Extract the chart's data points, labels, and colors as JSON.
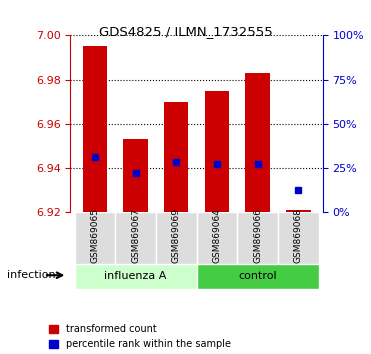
{
  "title": "GDS4825 / ILMN_1732555",
  "samples": [
    "GSM869065",
    "GSM869067",
    "GSM869069",
    "GSM869064",
    "GSM869066",
    "GSM869068"
  ],
  "bar_bottom": 6.92,
  "bar_tops": [
    6.995,
    6.953,
    6.97,
    6.975,
    6.983,
    6.921
  ],
  "blue_values": [
    6.945,
    6.938,
    6.943,
    6.942,
    6.942,
    6.93
  ],
  "ylim_left": [
    6.92,
    7.0
  ],
  "yticks_left": [
    6.92,
    6.94,
    6.96,
    6.98,
    7.0
  ],
  "ylim_right": [
    0,
    100
  ],
  "yticks_right": [
    0,
    25,
    50,
    75,
    100
  ],
  "bar_color": "#cc0000",
  "blue_color": "#0000cc",
  "bar_width": 0.6,
  "left_axis_color": "#cc0000",
  "right_axis_color": "#0000cc",
  "infection_label": "infection",
  "legend_red_label": "transformed count",
  "legend_blue_label": "percentile rank within the sample",
  "group_labels": [
    "influenza A",
    "control"
  ],
  "group_color_light": "#ccffcc",
  "group_color_dark": "#44cc44",
  "sample_box_color": "#dddddd"
}
